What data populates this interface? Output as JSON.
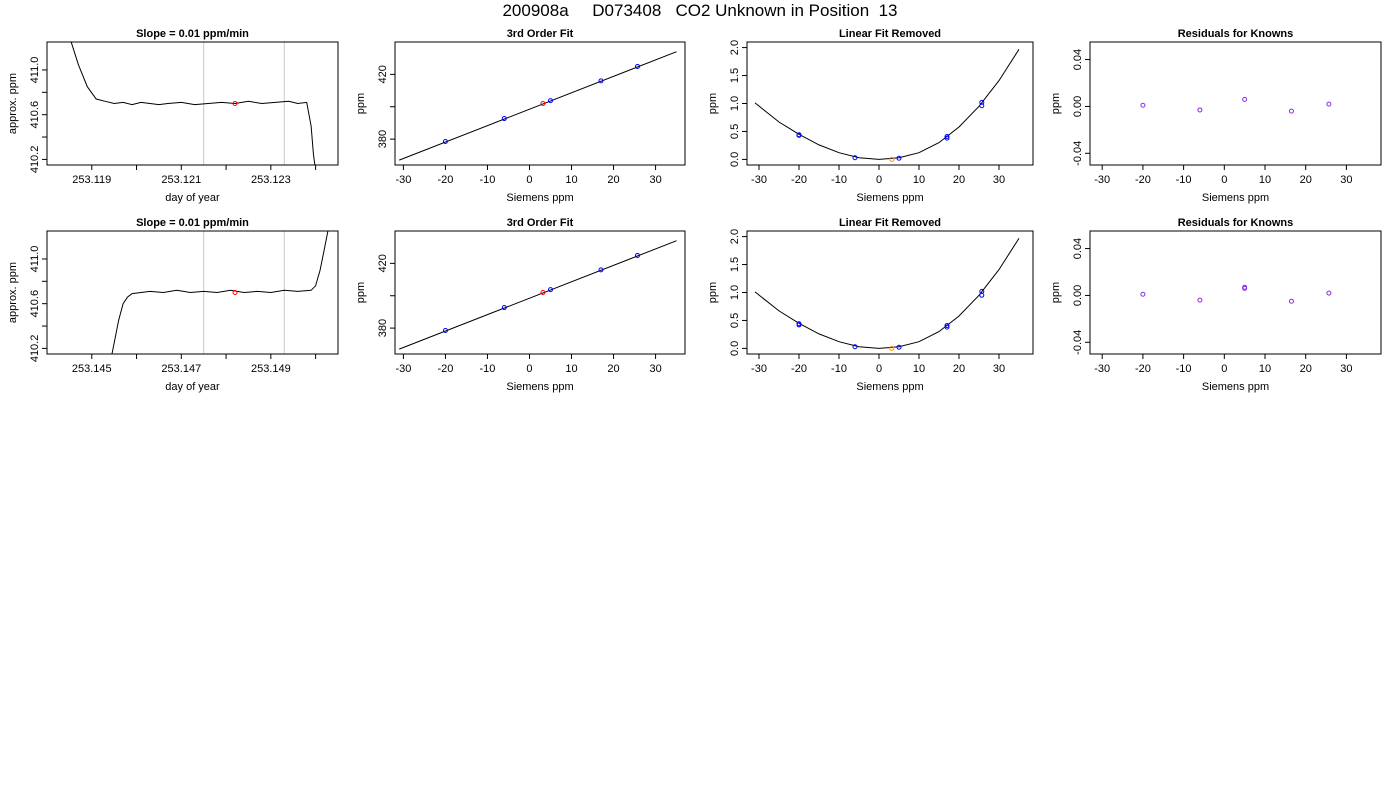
{
  "page": {
    "title": "200908a     D073408   CO2 Unknown in Position  13"
  },
  "colors": {
    "trace": "#000000",
    "fit_line": "#000000",
    "known_points": "#0000ff",
    "unknown_point": "#ff0000",
    "unknown_point_removed": "#ff8c00",
    "residual_points": "#8a2be2",
    "window_lines": "#c8c8c8"
  },
  "chart_data": [
    {
      "type": "line",
      "title": "Slope =  0.01  ppm/min",
      "xlabel": "day of year",
      "ylabel": "approx. ppm",
      "xlim": [
        253.118,
        253.1245
      ],
      "ylim": [
        410.15,
        411.25
      ],
      "xticks": [
        253.119,
        253.12,
        253.121,
        253.122,
        253.123,
        253.124
      ],
      "xtick_labels": [
        "253.119",
        "",
        "253.121",
        "",
        "253.123",
        ""
      ],
      "yticks": [
        410.2,
        410.4,
        410.6,
        410.8,
        411.0
      ],
      "ytick_labels": [
        "410.2",
        "",
        "410.6",
        "",
        "411.0"
      ],
      "vlines": [
        253.1215,
        253.1233
      ],
      "series": [
        {
          "x": [
            253.1185,
            253.1187,
            253.1189,
            253.1191,
            253.1193,
            253.1195,
            253.1197,
            253.1199,
            253.1201,
            253.1203,
            253.1205,
            253.1207,
            253.121,
            253.1213,
            253.1216,
            253.1219,
            253.1222,
            253.1225,
            253.1228,
            253.1231,
            253.1234,
            253.1236,
            253.1238,
            253.1239,
            253.12395,
            253.124
          ],
          "y": [
            411.3,
            411.05,
            410.85,
            410.74,
            410.72,
            410.7,
            410.71,
            410.69,
            410.71,
            410.7,
            410.69,
            410.7,
            410.71,
            410.69,
            410.7,
            410.71,
            410.7,
            410.72,
            410.7,
            410.71,
            410.72,
            410.7,
            410.71,
            410.5,
            410.25,
            410.1
          ]
        }
      ],
      "marker": {
        "x": 253.1222,
        "y": 410.7
      }
    },
    {
      "type": "scatter",
      "title": "3rd Order Fit",
      "xlabel": "Siemens ppm",
      "ylabel": "ppm",
      "xlim": [
        -32,
        37
      ],
      "ylim": [
        364,
        440
      ],
      "xticks": [
        -30,
        -20,
        -10,
        0,
        10,
        20,
        30
      ],
      "xtick_labels": [
        "-30",
        "-20",
        "-10",
        "0",
        "10",
        "20",
        "30"
      ],
      "yticks": [
        380,
        400,
        420
      ],
      "ytick_labels": [
        "380",
        "",
        "420"
      ],
      "fit_line": {
        "x": [
          -31,
          35
        ],
        "y": [
          367,
          434
        ]
      },
      "known": {
        "x": [
          -20,
          -6,
          5,
          17,
          25.7
        ],
        "y": [
          378.5,
          392.7,
          403.8,
          416.0,
          424.9
        ]
      },
      "unknown": {
        "x": [
          3.2
        ],
        "y": [
          402.0
        ]
      }
    },
    {
      "type": "scatter",
      "title": "Linear Fit Removed",
      "xlabel": "Siemens ppm",
      "ylabel": "ppm",
      "xlim": [
        -33,
        38.5
      ],
      "ylim": [
        -0.1,
        2.1
      ],
      "xticks": [
        -30,
        -20,
        -10,
        0,
        10,
        20,
        30
      ],
      "xtick_labels": [
        "-30",
        "-20",
        "-10",
        "0",
        "10",
        "20",
        "30"
      ],
      "yticks": [
        0,
        0.5,
        1.0,
        1.5,
        2.0
      ],
      "ytick_labels": [
        "0.0",
        "0.5",
        "1.0",
        "1.5",
        "2.0"
      ],
      "curve": {
        "x": [
          -31,
          -25,
          -20,
          -15,
          -10,
          -5,
          0,
          5,
          10,
          15,
          20,
          25,
          30,
          35
        ],
        "y": [
          1.01,
          0.67,
          0.45,
          0.26,
          0.12,
          0.03,
          0.0,
          0.03,
          0.12,
          0.3,
          0.58,
          0.95,
          1.41,
          1.97
        ]
      },
      "known": {
        "x": [
          -20,
          -20,
          -6,
          5,
          17,
          17,
          25.7,
          25.7
        ],
        "y": [
          0.43,
          0.44,
          0.03,
          0.02,
          0.38,
          0.41,
          0.96,
          1.02
        ]
      },
      "unknown": {
        "x": [
          3.2
        ],
        "y": [
          0.0
        ]
      }
    },
    {
      "type": "scatter",
      "title": "Residuals for Knowns",
      "xlabel": "Siemens ppm",
      "ylabel": "ppm",
      "xlim": [
        -33,
        38.5
      ],
      "ylim": [
        -0.05,
        0.055
      ],
      "xticks": [
        -30,
        -20,
        -10,
        0,
        10,
        20,
        30
      ],
      "xtick_labels": [
        "-30",
        "-20",
        "-10",
        "0",
        "10",
        "20",
        "30"
      ],
      "yticks": [
        -0.04,
        0.0,
        0.04
      ],
      "ytick_labels": [
        "-0.04",
        "0.00",
        "0.04"
      ],
      "points": {
        "x": [
          -20,
          -6,
          5,
          16.5,
          25.7
        ],
        "y": [
          0.001,
          -0.003,
          0.006,
          -0.004,
          0.002
        ]
      }
    },
    {
      "type": "line",
      "title": "Slope =  0.01  ppm/min",
      "xlabel": "day of year",
      "ylabel": "approx. ppm",
      "xlim": [
        253.144,
        253.1505
      ],
      "ylim": [
        410.15,
        411.25
      ],
      "xticks": [
        253.145,
        253.146,
        253.147,
        253.148,
        253.149,
        253.15
      ],
      "xtick_labels": [
        "253.145",
        "",
        "253.147",
        "",
        "253.149",
        ""
      ],
      "yticks": [
        410.2,
        410.4,
        410.6,
        410.8,
        411.0
      ],
      "ytick_labels": [
        "410.2",
        "",
        "410.6",
        "",
        "411.0"
      ],
      "vlines": [
        253.1475,
        253.1493
      ],
      "series": [
        {
          "x": [
            253.1454,
            253.1455,
            253.1456,
            253.1457,
            253.1458,
            253.1459,
            253.1461,
            253.1463,
            253.1466,
            253.1469,
            253.1472,
            253.1475,
            253.1478,
            253.1481,
            253.1484,
            253.1487,
            253.149,
            253.1493,
            253.1496,
            253.1499,
            253.15,
            253.1501,
            253.1502,
            253.1503
          ],
          "y": [
            410.05,
            410.25,
            410.45,
            410.6,
            410.66,
            410.69,
            410.7,
            410.71,
            410.7,
            410.72,
            410.7,
            410.71,
            410.7,
            410.72,
            410.7,
            410.71,
            410.7,
            410.72,
            410.71,
            410.72,
            410.76,
            410.9,
            411.1,
            411.3
          ]
        }
      ],
      "marker": {
        "x": 253.1482,
        "y": 410.7
      }
    },
    {
      "type": "scatter",
      "title": "3rd Order Fit",
      "xlabel": "Siemens ppm",
      "ylabel": "ppm",
      "xlim": [
        -32,
        37
      ],
      "ylim": [
        364,
        440
      ],
      "xticks": [
        -30,
        -20,
        -10,
        0,
        10,
        20,
        30
      ],
      "xtick_labels": [
        "-30",
        "-20",
        "-10",
        "0",
        "10",
        "20",
        "30"
      ],
      "yticks": [
        380,
        400,
        420
      ],
      "ytick_labels": [
        "380",
        "",
        "420"
      ],
      "fit_line": {
        "x": [
          -31,
          35
        ],
        "y": [
          367,
          434
        ]
      },
      "known": {
        "x": [
          -20,
          -6,
          5,
          17,
          25.7
        ],
        "y": [
          378.5,
          392.7,
          403.8,
          416.0,
          424.9
        ]
      },
      "unknown": {
        "x": [
          3.2
        ],
        "y": [
          402.0
        ]
      }
    },
    {
      "type": "scatter",
      "title": "Linear Fit Removed",
      "xlabel": "Siemens ppm",
      "ylabel": "ppm",
      "xlim": [
        -33,
        38.5
      ],
      "ylim": [
        -0.1,
        2.1
      ],
      "xticks": [
        -30,
        -20,
        -10,
        0,
        10,
        20,
        30
      ],
      "xtick_labels": [
        "-30",
        "-20",
        "-10",
        "0",
        "10",
        "20",
        "30"
      ],
      "yticks": [
        0,
        0.5,
        1.0,
        1.5,
        2.0
      ],
      "ytick_labels": [
        "0.0",
        "0.5",
        "1.0",
        "1.5",
        "2.0"
      ],
      "curve": {
        "x": [
          -31,
          -25,
          -20,
          -15,
          -10,
          -5,
          0,
          5,
          10,
          15,
          20,
          25,
          30,
          35
        ],
        "y": [
          1.01,
          0.67,
          0.45,
          0.26,
          0.12,
          0.03,
          0.0,
          0.03,
          0.12,
          0.3,
          0.58,
          0.95,
          1.41,
          1.97
        ]
      },
      "known": {
        "x": [
          -20,
          -20,
          -6,
          5,
          17,
          17,
          25.7,
          25.7
        ],
        "y": [
          0.42,
          0.44,
          0.03,
          0.02,
          0.38,
          0.41,
          0.95,
          1.02
        ]
      },
      "unknown": {
        "x": [
          3.2
        ],
        "y": [
          0.0
        ]
      }
    },
    {
      "type": "scatter",
      "title": "Residuals for Knowns",
      "xlabel": "Siemens ppm",
      "ylabel": "ppm",
      "xlim": [
        -33,
        38.5
      ],
      "ylim": [
        -0.05,
        0.055
      ],
      "xticks": [
        -30,
        -20,
        -10,
        0,
        10,
        20,
        30
      ],
      "xtick_labels": [
        "-30",
        "-20",
        "-10",
        "0",
        "10",
        "20",
        "30"
      ],
      "yticks": [
        -0.04,
        0.0,
        0.04
      ],
      "ytick_labels": [
        "-0.04",
        "0.00",
        "0.04"
      ],
      "points": {
        "x": [
          -20,
          -6,
          5,
          5,
          16.5,
          25.7
        ],
        "y": [
          0.001,
          -0.004,
          0.006,
          0.007,
          -0.005,
          0.002
        ]
      }
    }
  ]
}
